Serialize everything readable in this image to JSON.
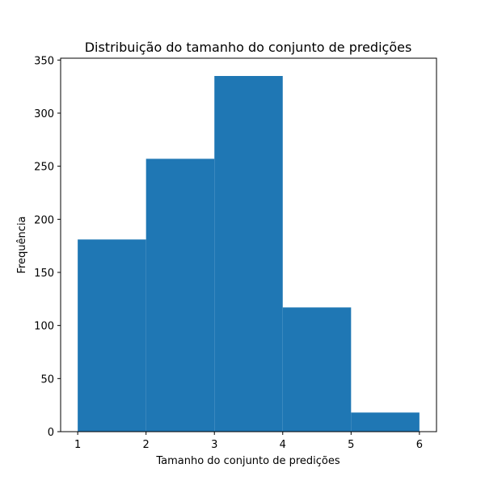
{
  "chart_data": {
    "type": "bar",
    "title": "Distribuição do tamanho do conjunto de predições",
    "xlabel": "Tamanho do conjunto de predições",
    "ylabel": "Frequência",
    "bins": [
      {
        "start": 1,
        "end": 2,
        "value": 181
      },
      {
        "start": 2,
        "end": 3,
        "value": 257
      },
      {
        "start": 3,
        "end": 4,
        "value": 335
      },
      {
        "start": 4,
        "end": 5,
        "value": 117
      },
      {
        "start": 5,
        "end": 6,
        "value": 18
      }
    ],
    "xlim": [
      0.75,
      6.25
    ],
    "ylim": [
      0,
      351.75
    ],
    "xticks": [
      1,
      2,
      3,
      4,
      5,
      6
    ],
    "yticks": [
      0,
      50,
      100,
      150,
      200,
      250,
      300,
      350
    ],
    "grid": false,
    "bar_color": "#1f77b4"
  }
}
